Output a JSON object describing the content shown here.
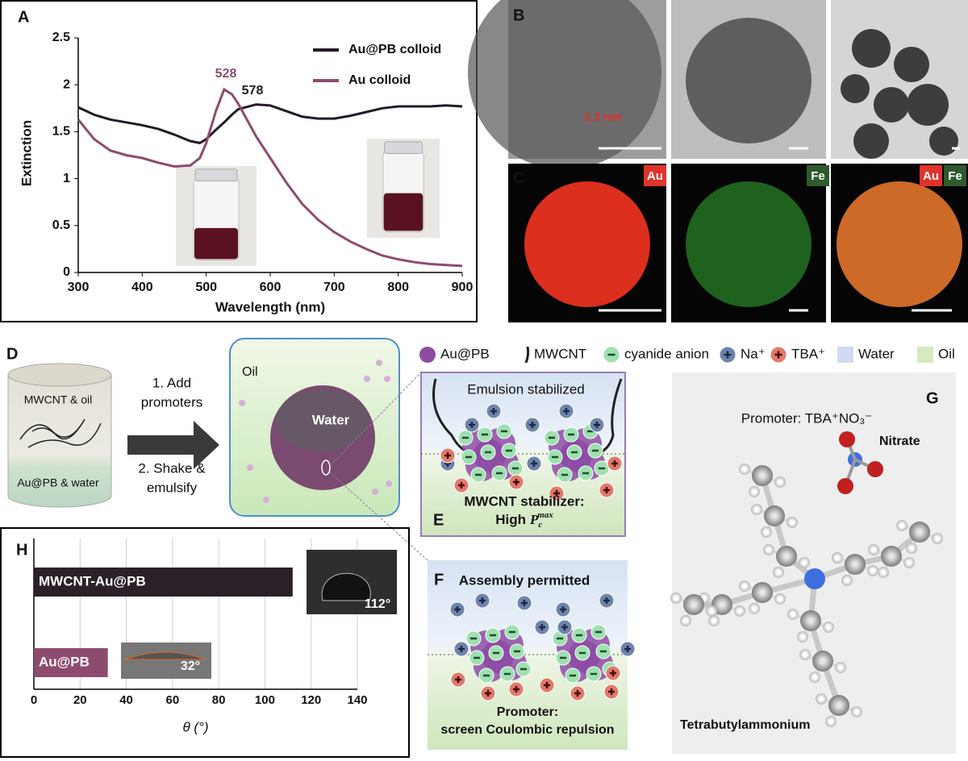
{
  "chart_data": [
    {
      "type": "line",
      "label": "A",
      "x": [
        300,
        325,
        350,
        375,
        400,
        425,
        450,
        475,
        490,
        500,
        515,
        528,
        540,
        550,
        578,
        600,
        625,
        650,
        675,
        700,
        725,
        750,
        775,
        800,
        825,
        850,
        875,
        900
      ],
      "series": [
        {
          "name": "Au@PB colloid",
          "color": "#241a28",
          "values": [
            1.76,
            1.68,
            1.63,
            1.6,
            1.57,
            1.53,
            1.47,
            1.4,
            1.38,
            1.42,
            1.52,
            1.6,
            1.68,
            1.74,
            1.79,
            1.78,
            1.72,
            1.66,
            1.64,
            1.64,
            1.67,
            1.71,
            1.75,
            1.77,
            1.77,
            1.77,
            1.78,
            1.77
          ]
        },
        {
          "name": "Au colloid",
          "color": "#8e4b6e",
          "values": [
            1.63,
            1.42,
            1.3,
            1.25,
            1.22,
            1.17,
            1.13,
            1.14,
            1.22,
            1.38,
            1.72,
            1.95,
            1.9,
            1.8,
            1.45,
            1.22,
            0.96,
            0.73,
            0.56,
            0.43,
            0.33,
            0.25,
            0.18,
            0.14,
            0.11,
            0.09,
            0.08,
            0.07
          ]
        }
      ],
      "xlim": [
        300,
        900
      ],
      "xticks": [
        300,
        400,
        500,
        600,
        700,
        800,
        900
      ],
      "ylim": [
        0,
        2.5
      ],
      "yticks": [
        0,
        0.5,
        1,
        1.5,
        2,
        2.5
      ],
      "xlabel": "Wavelength (nm)",
      "ylabel": "Extinction",
      "annotations": [
        {
          "text": "528",
          "color": "#8e4b6e"
        },
        {
          "text": "578",
          "color": "#241a28"
        }
      ]
    },
    {
      "type": "bar",
      "orientation": "horizontal",
      "label": "H",
      "categories": [
        "MWCNT-Au@PB",
        "Au@PB"
      ],
      "values": [
        112,
        32
      ],
      "value_labels": [
        "112°",
        "32°"
      ],
      "colors": [
        "#2b2029",
        "#8e4b6e"
      ],
      "xlim": [
        0,
        140
      ],
      "xticks": [
        0,
        20,
        40,
        60,
        80,
        100,
        120,
        140
      ],
      "xlabel": "θ (°)",
      "grid": true
    }
  ],
  "panels": {
    "B": {
      "label": "B",
      "scale_note": "1.3 nm"
    },
    "C": {
      "label": "C",
      "tags": [
        "Au",
        "Fe",
        "Au",
        "Fe"
      ]
    },
    "D": {
      "label": "D",
      "vial_top": "MWCNT & oil",
      "vial_bottom": "Au@PB & water",
      "step1": [
        "1. Add",
        "promoters"
      ],
      "step2": [
        "2. Shake &",
        "emulsify"
      ],
      "oil": "Oil",
      "water": "Water"
    },
    "legend": {
      "items": [
        "Au@PB",
        "MWCNT",
        "cyanide anion",
        "Na⁺",
        "TBA⁺",
        "Water",
        "Oil"
      ]
    },
    "E": {
      "label": "E",
      "title": "Emulsion stabilized",
      "caption": "MWCNT stabilizer:",
      "math": {
        "prefix": "High",
        "base": "P",
        "sub": "c",
        "sup": "max"
      }
    },
    "F": {
      "label": "F",
      "title": "Assembly permitted",
      "caption": [
        "Promoter:",
        "screen Coulombic repulsion"
      ]
    },
    "G": {
      "label": "G",
      "title": "Promoter: TBA⁺NO₃⁻",
      "nitrate": "Nitrate",
      "cation": "Tetrabutylammonium"
    }
  }
}
